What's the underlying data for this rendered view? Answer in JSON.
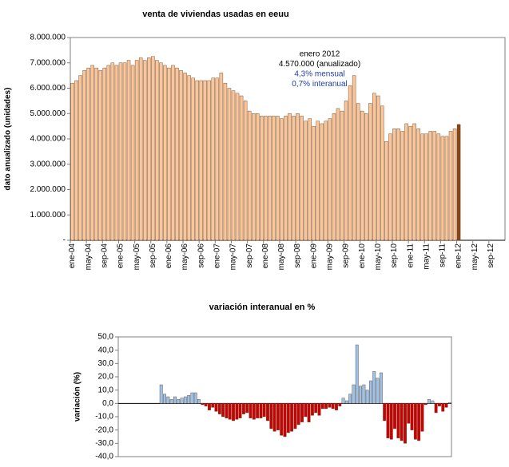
{
  "chart_data": [
    {
      "type": "bar",
      "title": "venta de viviendas usadas en eeuu",
      "y_label": "dato anualizado (unidades)",
      "categories": [
        "ene-04",
        null,
        null,
        null,
        "may-04",
        null,
        null,
        null,
        "sep-04",
        null,
        null,
        null,
        "ene-05",
        null,
        null,
        null,
        "may-05",
        null,
        null,
        null,
        "sep-05",
        null,
        null,
        null,
        "ene-06",
        null,
        null,
        null,
        "may-06",
        null,
        null,
        null,
        "sep-06",
        null,
        null,
        null,
        "ene-07",
        null,
        null,
        null,
        "may-07",
        null,
        null,
        null,
        "sep-07",
        null,
        null,
        null,
        "ene-08",
        null,
        null,
        null,
        "may-08",
        null,
        null,
        null,
        "sep-08",
        null,
        null,
        null,
        "ene-09",
        null,
        null,
        null,
        "may-09",
        null,
        null,
        null,
        "sep-09",
        null,
        null,
        null,
        "ene-10",
        null,
        null,
        null,
        "may-10",
        null,
        null,
        null,
        "sep-10",
        null,
        null,
        null,
        "ene-11",
        null,
        null,
        null,
        "may-11",
        null,
        null,
        null,
        "sep-11",
        null,
        null,
        null,
        "ene-12",
        null,
        null,
        null,
        "may-12",
        null,
        null,
        null,
        "sep-12",
        null,
        null,
        null
      ],
      "values": [
        6200000,
        6300000,
        6500000,
        6700000,
        6800000,
        6900000,
        6800000,
        6700000,
        6800000,
        6900000,
        7000000,
        6900000,
        7000000,
        7000000,
        7100000,
        6900000,
        7100000,
        7200000,
        7100000,
        7200000,
        7250000,
        7100000,
        7000000,
        6900000,
        6800000,
        6900000,
        6800000,
        6700000,
        6600000,
        6500000,
        6400000,
        6300000,
        6300000,
        6300000,
        6300000,
        6400000,
        6400000,
        6600000,
        6200000,
        6000000,
        5900000,
        5800000,
        5700000,
        5500000,
        5100000,
        5000000,
        5000000,
        4900000,
        4900000,
        4900000,
        4900000,
        4900000,
        4800000,
        4900000,
        5000000,
        4900000,
        5000000,
        4900000,
        4700000,
        4800000,
        4500000,
        4700000,
        4600000,
        4700000,
        4800000,
        5000000,
        5200000,
        5100000,
        5500000,
        6100000,
        6500000,
        5400000,
        5100000,
        5000000,
        5400000,
        5800000,
        5700000,
        5300000,
        3900000,
        4200000,
        4400000,
        4400000,
        4300000,
        4600000,
        4500000,
        4600000,
        4400000,
        4200000,
        4200000,
        4300000,
        4300000,
        4200000,
        4100000,
        4100000,
        4300000,
        4400000,
        4570000,
        null,
        null,
        null,
        null,
        null,
        null,
        null,
        null,
        null,
        null,
        null
      ],
      "color": "#fbc598",
      "highlight_color": "#8b4513",
      "ylim": [
        0,
        8000000
      ],
      "yticks": [
        {
          "value": 0,
          "label": "-"
        },
        {
          "value": 1000000,
          "label": "1.000.000"
        },
        {
          "value": 2000000,
          "label": "2.000.000"
        },
        {
          "value": 3000000,
          "label": "3.000.000"
        },
        {
          "value": 4000000,
          "label": "4.000.000"
        },
        {
          "value": 5000000,
          "label": "5.000.000"
        },
        {
          "value": 6000000,
          "label": "6.000.000"
        },
        {
          "value": 7000000,
          "label": "7.000.000"
        },
        {
          "value": 8000000,
          "label": "8.000.000"
        }
      ],
      "grid": false,
      "annotations": [
        {
          "text": "enero 2012",
          "color": "#000000"
        },
        {
          "text": "4.570.000 (anualizado)",
          "color": "#000000"
        },
        {
          "text": "4,3% mensual",
          "color": "#1f3f9f"
        },
        {
          "text": "0,7% interanual",
          "color": "#1f3f9f"
        }
      ]
    },
    {
      "type": "bar",
      "title": "variación interanual en %",
      "y_label": "variación (%)",
      "categories": [
        null,
        null,
        null,
        null,
        null,
        null,
        null,
        null,
        null,
        null,
        null,
        null,
        null,
        null,
        null,
        null,
        null,
        null,
        null,
        null,
        null,
        null,
        null,
        null,
        null,
        null,
        null,
        null,
        null,
        null,
        null,
        null,
        null,
        null,
        null,
        null,
        null,
        null,
        null,
        null,
        null,
        null,
        null,
        null,
        null,
        null,
        null,
        null,
        null,
        null,
        null,
        null,
        null,
        null,
        null,
        null,
        null,
        null,
        null,
        null,
        null,
        null,
        null,
        null,
        null,
        null,
        null,
        null,
        null,
        null,
        null,
        null,
        null,
        null,
        null,
        null,
        null,
        null,
        null,
        null,
        null,
        null,
        null,
        null,
        null,
        null,
        null,
        null,
        null,
        null,
        null,
        null,
        null,
        null,
        null,
        null,
        null
      ],
      "values": [
        null,
        null,
        null,
        null,
        null,
        null,
        null,
        null,
        null,
        null,
        null,
        null,
        14,
        7,
        5,
        3,
        5,
        3,
        4,
        5,
        6,
        8,
        8,
        3,
        -1,
        -2,
        -5,
        -3,
        -6,
        -8,
        -10,
        -11,
        -12,
        -13,
        -12,
        -11,
        -8,
        -7,
        -11,
        -12,
        -11,
        -11,
        -10,
        -13,
        -19,
        -21,
        -20,
        -24,
        -25,
        -22,
        -21,
        -19,
        -16,
        -14,
        -10,
        -14,
        -9,
        -7,
        -9,
        -4,
        -4,
        -3,
        -4,
        -5,
        -2,
        4,
        2,
        7,
        14,
        44,
        13,
        14,
        10,
        17,
        24,
        19,
        23,
        -13,
        -26,
        -27,
        -19,
        -26,
        -28,
        -30,
        -15,
        -20,
        -27,
        -28,
        -21,
        -1,
        3,
        2,
        -7,
        -2,
        -6,
        -3,
        0.7
      ],
      "positive_color": "#99c3ec",
      "negative_color": "#cc0000",
      "ylim": [
        -40,
        50
      ],
      "yticks": [
        {
          "value": -40,
          "label": "-40,0"
        },
        {
          "value": -30,
          "label": "-30,0"
        },
        {
          "value": -20,
          "label": "-20,0"
        },
        {
          "value": -10,
          "label": "-10,0"
        },
        {
          "value": 0,
          "label": "0,0"
        },
        {
          "value": 10,
          "label": "10,0"
        },
        {
          "value": 20,
          "label": "20,0"
        },
        {
          "value": 30,
          "label": "30,0"
        },
        {
          "value": 40,
          "label": "40,0"
        },
        {
          "value": 50,
          "label": "50,0"
        }
      ],
      "grid": false
    }
  ]
}
